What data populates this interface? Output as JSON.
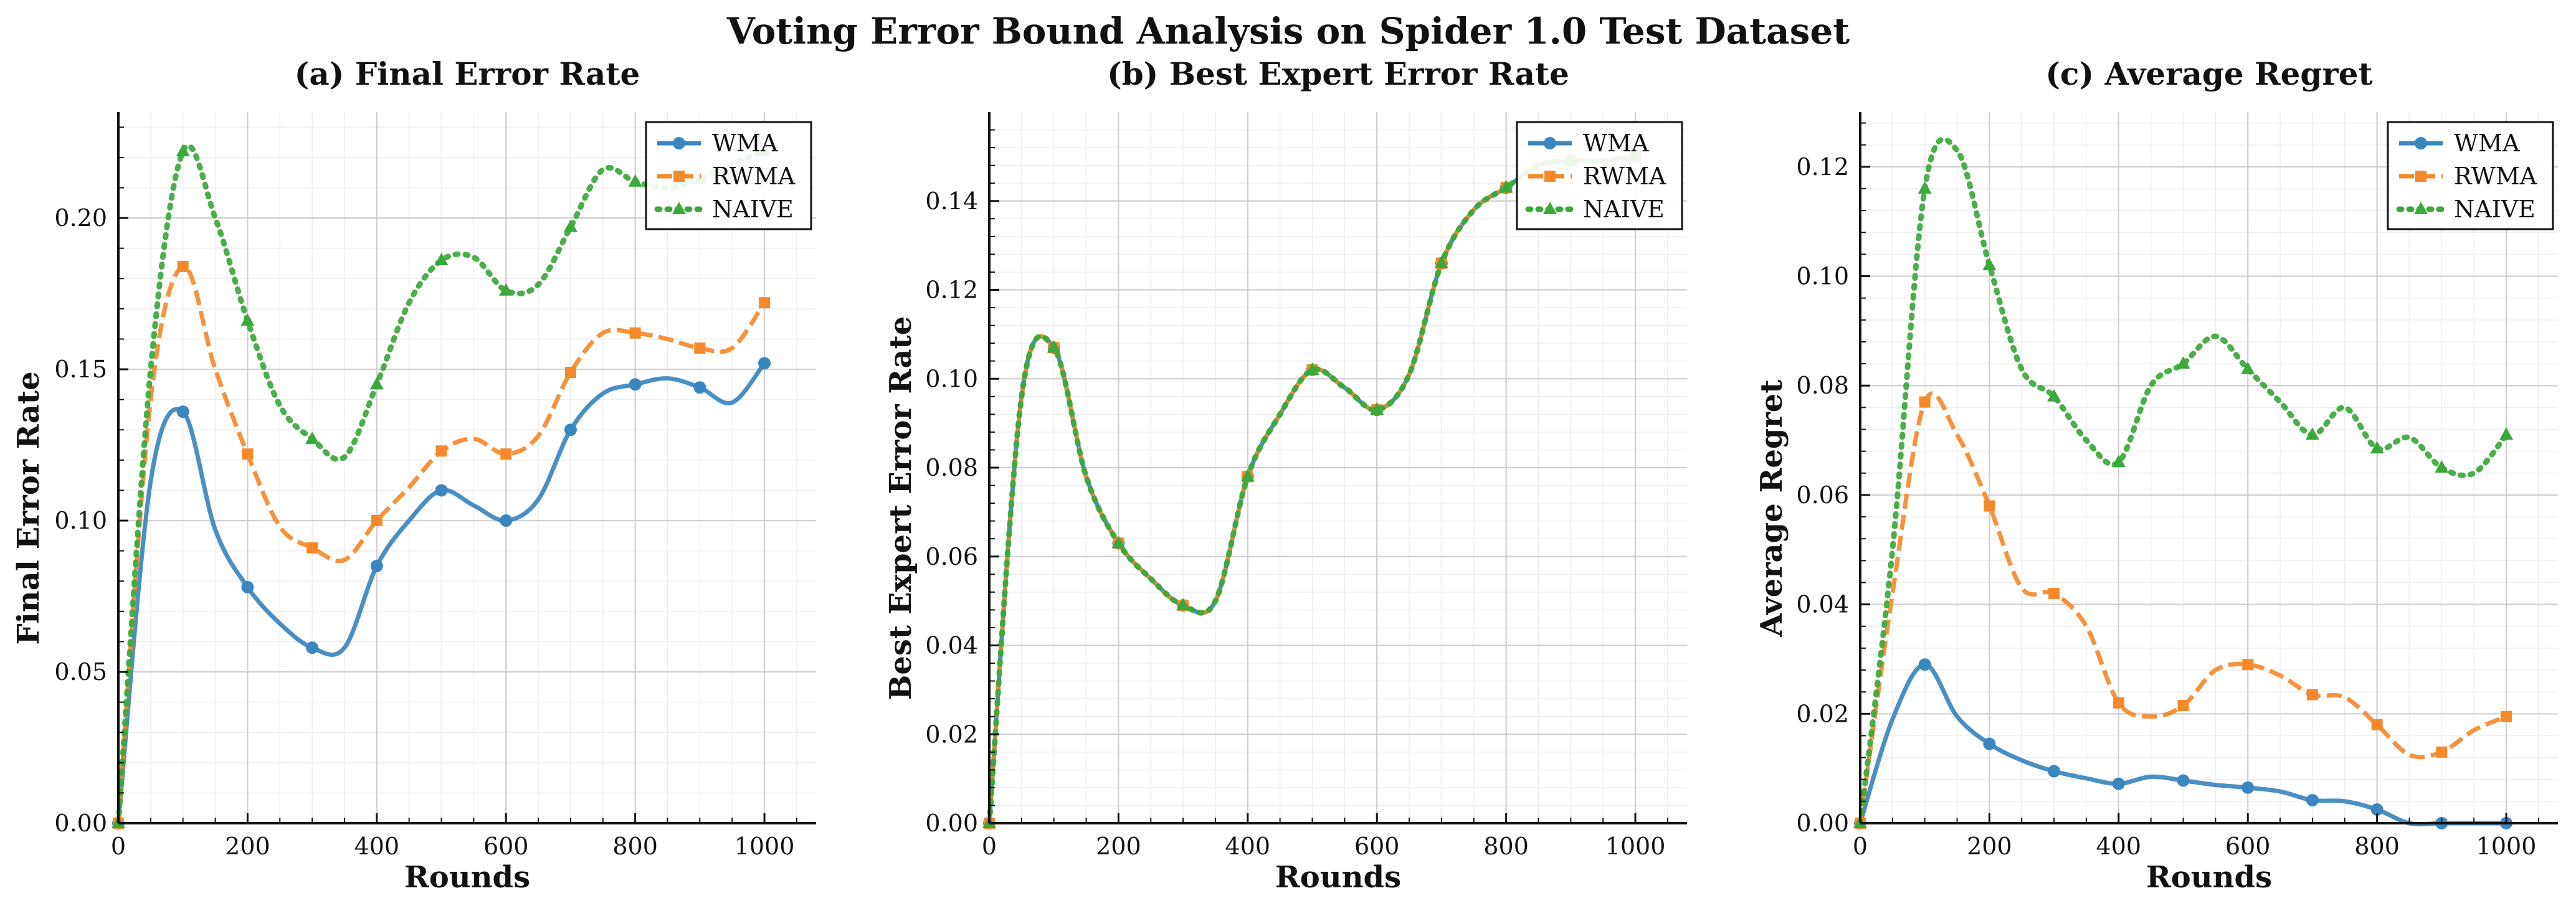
{
  "title": "Voting Error Bound Analysis on Spider 1.0 Test Dataset",
  "legend_entries": [
    "WMA",
    "RWMA",
    "NAIVE"
  ],
  "colors": {
    "WMA": "#3a86bf",
    "RWMA": "#f5892a",
    "NAIVE": "#3aa83a"
  },
  "chart_data": [
    {
      "type": "line",
      "title": "(a) Final Error Rate",
      "xlabel": "Rounds",
      "ylabel": "Final Error Rate",
      "xlim": [
        0,
        1080
      ],
      "ylim": [
        0,
        0.235
      ],
      "xticks": [
        0,
        200,
        400,
        600,
        800,
        1000
      ],
      "yticks": [
        0.0,
        0.05,
        0.1,
        0.15,
        0.2
      ],
      "ytick_labels": [
        "0.00",
        "0.05",
        "0.10",
        "0.15",
        "0.20"
      ],
      "grid": true,
      "legend_position": "upper right",
      "x": [
        0,
        50,
        100,
        150,
        200,
        250,
        300,
        350,
        400,
        450,
        500,
        550,
        600,
        650,
        700,
        750,
        800,
        850,
        900,
        950,
        1000
      ],
      "series": [
        {
          "name": "WMA",
          "style": "solid",
          "marker": "circle",
          "values": [
            0.0,
            0.113,
            0.136,
            0.097,
            0.078,
            0.066,
            0.058,
            0.058,
            0.085,
            0.1,
            0.11,
            0.105,
            0.1,
            0.107,
            0.13,
            0.142,
            0.145,
            0.147,
            0.144,
            0.139,
            0.152
          ]
        },
        {
          "name": "RWMA",
          "style": "dashed",
          "marker": "square",
          "values": [
            0.0,
            0.14,
            0.184,
            0.15,
            0.122,
            0.098,
            0.091,
            0.087,
            0.1,
            0.111,
            0.123,
            0.127,
            0.122,
            0.128,
            0.149,
            0.162,
            0.162,
            0.16,
            0.157,
            0.157,
            0.172
          ]
        },
        {
          "name": "NAIVE",
          "style": "dotted",
          "marker": "triangle",
          "values": [
            0.0,
            0.15,
            0.222,
            0.2,
            0.166,
            0.138,
            0.127,
            0.121,
            0.145,
            0.172,
            0.186,
            0.187,
            0.176,
            0.178,
            0.197,
            0.216,
            0.212,
            0.21,
            0.213,
            0.218,
            0.222
          ]
        }
      ]
    },
    {
      "type": "line",
      "title": "(b) Best Expert Error Rate",
      "xlabel": "Rounds",
      "ylabel": "Best Expert Error Rate",
      "xlim": [
        0,
        1080
      ],
      "ylim": [
        0,
        0.16
      ],
      "xticks": [
        0,
        200,
        400,
        600,
        800,
        1000
      ],
      "yticks": [
        0.0,
        0.02,
        0.04,
        0.06,
        0.08,
        0.1,
        0.12,
        0.14
      ],
      "ytick_labels": [
        "0.00",
        "0.02",
        "0.04",
        "0.06",
        "0.08",
        "0.10",
        "0.12",
        "0.14"
      ],
      "grid": true,
      "legend_position": "upper right",
      "x": [
        0,
        50,
        100,
        150,
        200,
        250,
        300,
        350,
        400,
        450,
        500,
        550,
        600,
        650,
        700,
        750,
        800,
        850,
        900,
        950,
        1000
      ],
      "series": [
        {
          "name": "WMA",
          "style": "solid",
          "marker": "circle",
          "values": [
            0.0,
            0.096,
            0.107,
            0.078,
            0.063,
            0.055,
            0.049,
            0.05,
            0.078,
            0.092,
            0.102,
            0.098,
            0.093,
            0.101,
            0.126,
            0.138,
            0.143,
            0.148,
            0.149,
            0.149,
            0.15
          ]
        },
        {
          "name": "RWMA",
          "style": "dashed",
          "marker": "square",
          "values": [
            0.0,
            0.096,
            0.107,
            0.078,
            0.063,
            0.055,
            0.049,
            0.05,
            0.078,
            0.092,
            0.102,
            0.098,
            0.093,
            0.101,
            0.126,
            0.138,
            0.143,
            0.148,
            0.149,
            0.149,
            0.15
          ]
        },
        {
          "name": "NAIVE",
          "style": "dotted",
          "marker": "triangle",
          "values": [
            0.0,
            0.096,
            0.107,
            0.078,
            0.063,
            0.055,
            0.049,
            0.05,
            0.078,
            0.092,
            0.102,
            0.098,
            0.093,
            0.101,
            0.126,
            0.138,
            0.143,
            0.148,
            0.149,
            0.149,
            0.15
          ]
        }
      ]
    },
    {
      "type": "line",
      "title": "(c) Average Regret",
      "xlabel": "Rounds",
      "ylabel": "Average Regret",
      "xlim": [
        0,
        1080
      ],
      "ylim": [
        0,
        0.13
      ],
      "xticks": [
        0,
        200,
        400,
        600,
        800,
        1000
      ],
      "yticks": [
        0.0,
        0.02,
        0.04,
        0.06,
        0.08,
        0.1,
        0.12
      ],
      "ytick_labels": [
        "0.00",
        "0.02",
        "0.04",
        "0.06",
        "0.08",
        "0.10",
        "0.12"
      ],
      "grid": true,
      "legend_position": "upper right",
      "x": [
        0,
        50,
        100,
        150,
        200,
        250,
        300,
        350,
        400,
        450,
        500,
        550,
        600,
        650,
        700,
        750,
        800,
        850,
        900,
        950,
        1000
      ],
      "series": [
        {
          "name": "WMA",
          "style": "solid",
          "marker": "circle",
          "values": [
            0.0,
            0.019,
            0.029,
            0.0195,
            0.0145,
            0.0115,
            0.0095,
            0.0082,
            0.0072,
            0.0085,
            0.0078,
            0.007,
            0.0065,
            0.0058,
            0.0042,
            0.004,
            0.0025,
            0.0,
            0.0,
            0.0,
            0.0
          ]
        },
        {
          "name": "RWMA",
          "style": "dashed",
          "marker": "square",
          "values": [
            0.0,
            0.042,
            0.077,
            0.071,
            0.058,
            0.043,
            0.042,
            0.036,
            0.022,
            0.0195,
            0.0215,
            0.028,
            0.029,
            0.027,
            0.0235,
            0.023,
            0.018,
            0.0125,
            0.013,
            0.017,
            0.0195
          ]
        },
        {
          "name": "NAIVE",
          "style": "dotted",
          "marker": "triangle",
          "values": [
            0.0,
            0.05,
            0.116,
            0.123,
            0.102,
            0.083,
            0.078,
            0.07,
            0.066,
            0.08,
            0.084,
            0.089,
            0.083,
            0.077,
            0.071,
            0.076,
            0.0685,
            0.0705,
            0.065,
            0.064,
            0.071
          ]
        }
      ]
    }
  ]
}
